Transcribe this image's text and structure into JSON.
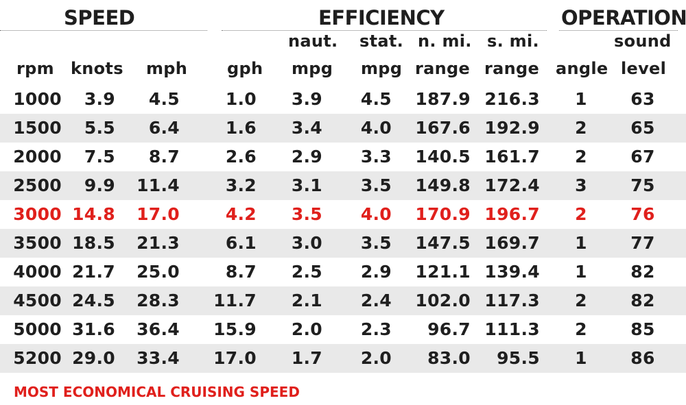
{
  "groups": {
    "speed": "SPEED",
    "efficiency": "EFFICIENCY",
    "operation": "OPERATION"
  },
  "columns": {
    "rpm": "rpm",
    "knots": "knots",
    "mph": "mph",
    "gph": "gph",
    "naut_mpg_top": "naut.",
    "naut_mpg_bottom": "mpg",
    "stat_mpg_top": "stat.",
    "stat_mpg_bottom": "mpg",
    "nmi_range_top": "n. mi.",
    "nmi_range_bottom": "range",
    "smi_range_top": "s. mi.",
    "smi_range_bottom": "range",
    "angle": "angle",
    "sound_top": "sound",
    "sound_bottom": "level"
  },
  "rows": [
    {
      "rpm": "1000",
      "knots": "3.9",
      "mph": "4.5",
      "gph": "1.0",
      "naut_mpg": "3.9",
      "stat_mpg": "4.5",
      "nmi_range": "187.9",
      "smi_range": "216.3",
      "angle": "1",
      "sound": "63"
    },
    {
      "rpm": "1500",
      "knots": "5.5",
      "mph": "6.4",
      "gph": "1.6",
      "naut_mpg": "3.4",
      "stat_mpg": "4.0",
      "nmi_range": "167.6",
      "smi_range": "192.9",
      "angle": "2",
      "sound": "65"
    },
    {
      "rpm": "2000",
      "knots": "7.5",
      "mph": "8.7",
      "gph": "2.6",
      "naut_mpg": "2.9",
      "stat_mpg": "3.3",
      "nmi_range": "140.5",
      "smi_range": "161.7",
      "angle": "2",
      "sound": "67"
    },
    {
      "rpm": "2500",
      "knots": "9.9",
      "mph": "11.4",
      "gph": "3.2",
      "naut_mpg": "3.1",
      "stat_mpg": "3.5",
      "nmi_range": "149.8",
      "smi_range": "172.4",
      "angle": "3",
      "sound": "75"
    },
    {
      "rpm": "3000",
      "knots": "14.8",
      "mph": "17.0",
      "gph": "4.2",
      "naut_mpg": "3.5",
      "stat_mpg": "4.0",
      "nmi_range": "170.9",
      "smi_range": "196.7",
      "angle": "2",
      "sound": "76"
    },
    {
      "rpm": "3500",
      "knots": "18.5",
      "mph": "21.3",
      "gph": "6.1",
      "naut_mpg": "3.0",
      "stat_mpg": "3.5",
      "nmi_range": "147.5",
      "smi_range": "169.7",
      "angle": "1",
      "sound": "77"
    },
    {
      "rpm": "4000",
      "knots": "21.7",
      "mph": "25.0",
      "gph": "8.7",
      "naut_mpg": "2.5",
      "stat_mpg": "2.9",
      "nmi_range": "121.1",
      "smi_range": "139.4",
      "angle": "1",
      "sound": "82"
    },
    {
      "rpm": "4500",
      "knots": "24.5",
      "mph": "28.3",
      "gph": "11.7",
      "naut_mpg": "2.1",
      "stat_mpg": "2.4",
      "nmi_range": "102.0",
      "smi_range": "117.3",
      "angle": "2",
      "sound": "82"
    },
    {
      "rpm": "5000",
      "knots": "31.6",
      "mph": "36.4",
      "gph": "15.9",
      "naut_mpg": "2.0",
      "stat_mpg": "2.3",
      "nmi_range": "96.7",
      "smi_range": "111.3",
      "angle": "2",
      "sound": "85"
    },
    {
      "rpm": "5200",
      "knots": "29.0",
      "mph": "33.4",
      "gph": "17.0",
      "naut_mpg": "1.7",
      "stat_mpg": "2.0",
      "nmi_range": "83.0",
      "smi_range": "95.5",
      "angle": "1",
      "sound": "86"
    }
  ],
  "highlight_row_index": 4,
  "footnote": "MOST ECONOMICAL CRUISING SPEED",
  "colors": {
    "highlight": "#e0201c",
    "row_shade": "#e9e9e9",
    "text": "#1f1f1f"
  }
}
